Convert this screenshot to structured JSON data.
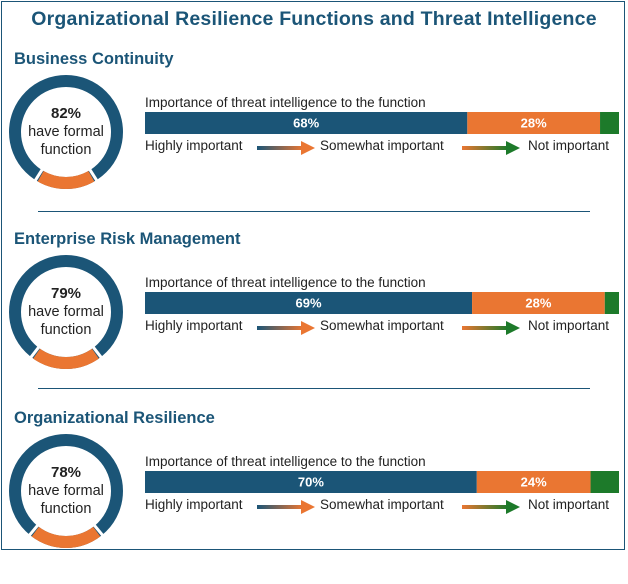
{
  "title": "Organizational Resilience Functions and Threat Intelligence",
  "colors": {
    "navy": "#1b5577",
    "orange": "#ea7632",
    "green": "#1d7a2a",
    "donut_track": "#1b5577"
  },
  "chart_data": [
    {
      "type": "bar",
      "orientation": "horizontal-stacked",
      "title": "Business Continuity",
      "donut": {
        "value": 82,
        "pct_label": "82%",
        "line1": "have formal",
        "line2": "function"
      },
      "caption": "Importance of threat intelligence to the function",
      "segments": [
        {
          "name": "Highly important",
          "value": 68,
          "label": "68%"
        },
        {
          "name": "Somewhat important",
          "value": 28,
          "label": "28%"
        },
        {
          "name": "Not important",
          "value": 4,
          "label": ""
        }
      ],
      "legend": {
        "highly": "Highly important",
        "somewhat": "Somewhat important",
        "not": "Not important"
      }
    },
    {
      "type": "bar",
      "orientation": "horizontal-stacked",
      "title": "Enterprise Risk Management",
      "donut": {
        "value": 79,
        "pct_label": "79%",
        "line1": "have formal",
        "line2": "function"
      },
      "caption": "Importance of threat intelligence to the function",
      "segments": [
        {
          "name": "Highly important",
          "value": 69,
          "label": "69%"
        },
        {
          "name": "Somewhat important",
          "value": 28,
          "label": "28%"
        },
        {
          "name": "Not important",
          "value": 3,
          "label": ""
        }
      ],
      "legend": {
        "highly": "Highly important",
        "somewhat": "Somewhat important",
        "not": "Not important"
      }
    },
    {
      "type": "bar",
      "orientation": "horizontal-stacked",
      "title": "Organizational Resilience",
      "donut": {
        "value": 78,
        "pct_label": "78%",
        "line1": "have formal",
        "line2": "function"
      },
      "caption": "Importance of threat intelligence to the function",
      "segments": [
        {
          "name": "Highly important",
          "value": 70,
          "label": "70%"
        },
        {
          "name": "Somewhat important",
          "value": 24,
          "label": "24%"
        },
        {
          "name": "Not important",
          "value": 6,
          "label": ""
        }
      ],
      "legend": {
        "highly": "Highly important",
        "somewhat": "Somewhat important",
        "not": "Not important"
      }
    }
  ]
}
